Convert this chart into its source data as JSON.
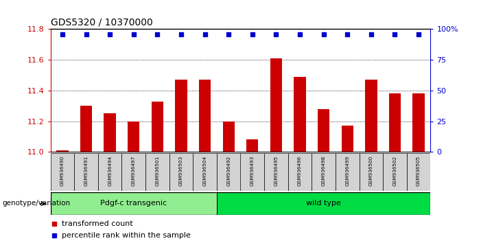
{
  "title": "GDS5320 / 10370000",
  "samples": [
    "GSM936490",
    "GSM936491",
    "GSM936494",
    "GSM936497",
    "GSM936501",
    "GSM936503",
    "GSM936504",
    "GSM936492",
    "GSM936493",
    "GSM936495",
    "GSM936496",
    "GSM936498",
    "GSM936499",
    "GSM936500",
    "GSM936502",
    "GSM936505"
  ],
  "values": [
    11.01,
    11.3,
    11.25,
    11.2,
    11.33,
    11.47,
    11.47,
    11.2,
    11.08,
    11.61,
    11.49,
    11.28,
    11.17,
    11.47,
    11.38,
    11.38
  ],
  "bar_color": "#cc0000",
  "dot_color": "#0000cc",
  "ylim_left": [
    11.0,
    11.8
  ],
  "ylim_right": [
    0,
    100
  ],
  "yticks_left": [
    11.0,
    11.2,
    11.4,
    11.6,
    11.8
  ],
  "yticks_right": [
    0,
    25,
    50,
    75,
    100
  ],
  "ytick_labels_right": [
    "0",
    "25",
    "50",
    "75",
    "100%"
  ],
  "groups": [
    {
      "label": "Pdgf-c transgenic",
      "start": 0,
      "end": 7,
      "color": "#90ee90"
    },
    {
      "label": "wild type",
      "start": 7,
      "end": 16,
      "color": "#00dd44"
    }
  ],
  "group_label": "genotype/variation",
  "legend_bar_label": "transformed count",
  "legend_dot_label": "percentile rank within the sample",
  "tick_label_color_left": "#cc0000",
  "tick_label_color_right": "#0000cc"
}
